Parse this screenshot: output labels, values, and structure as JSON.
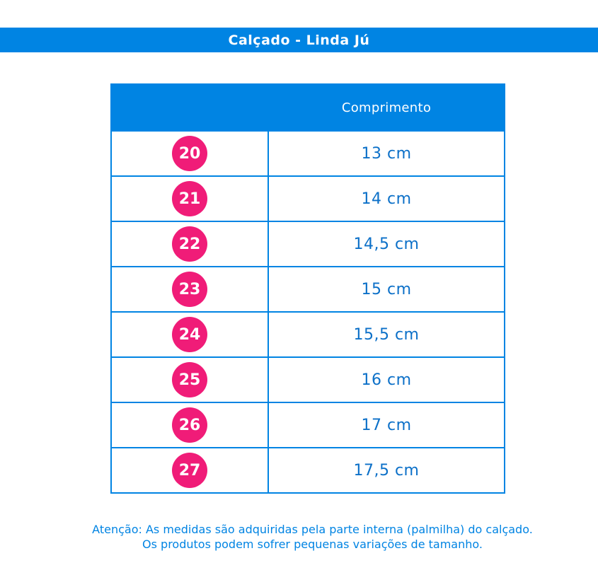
{
  "title": "Calçado - Linda Jú",
  "table": {
    "header_label": "Comprimento",
    "rows": [
      {
        "size": "20",
        "length": "13 cm"
      },
      {
        "size": "21",
        "length": "14 cm"
      },
      {
        "size": "22",
        "length": "14,5 cm"
      },
      {
        "size": "23",
        "length": "15 cm"
      },
      {
        "size": "24",
        "length": "15,5 cm"
      },
      {
        "size": "25",
        "length": "16 cm"
      },
      {
        "size": "26",
        "length": "17 cm"
      },
      {
        "size": "27",
        "length": "17,5 cm"
      }
    ]
  },
  "note": {
    "line1": "Atenção: As medidas são adquiridas pela parte interna (palmilha) do calçado.",
    "line2": "Os produtos podem sofrer pequenas variações de tamanho."
  },
  "colors": {
    "brand_blue": "#0084e3",
    "badge_pink": "#f01c78",
    "text_blue": "#0c70c8"
  }
}
